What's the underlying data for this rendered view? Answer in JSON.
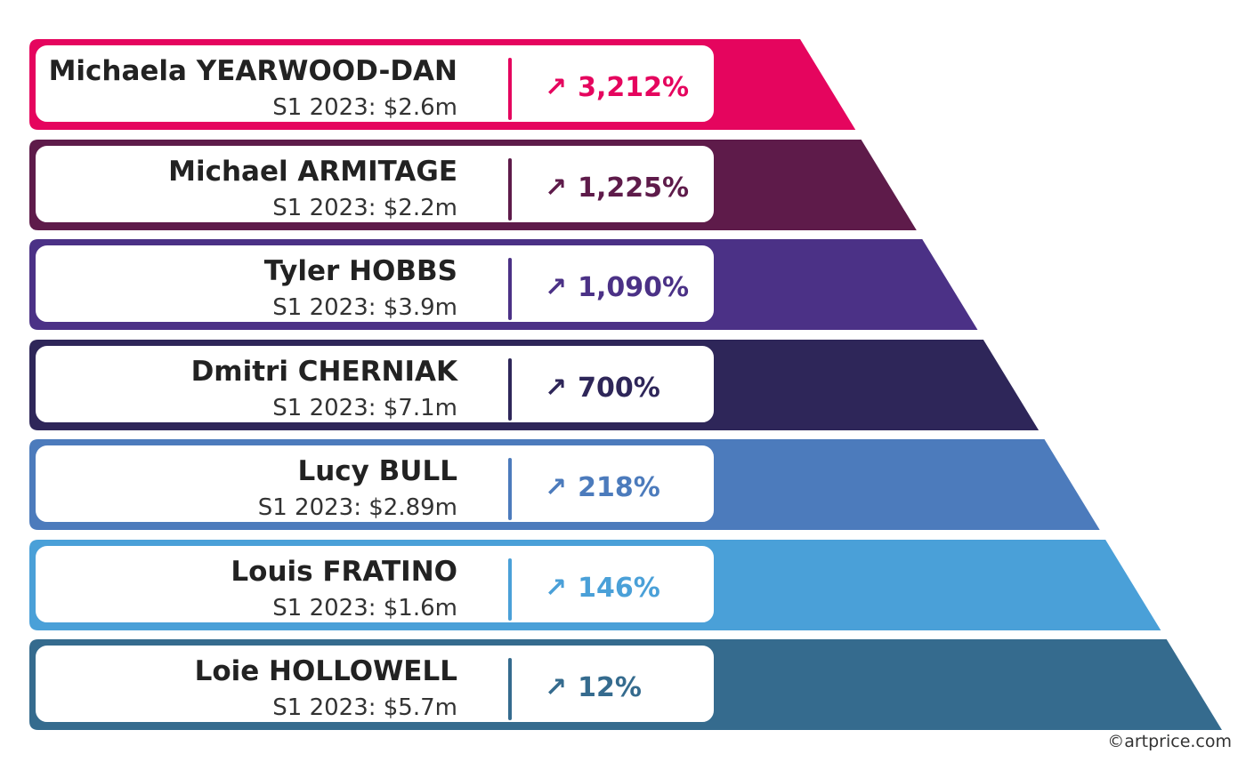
{
  "chart_data": {
    "type": "bar",
    "rows": [
      {
        "artist": "Michaela YEARWOOD-DAN",
        "sales_label": "S1 2023: $2.6m",
        "growth_label": "3,212%",
        "growth_value": 3212,
        "color": "#e5055e"
      },
      {
        "artist": "Michael ARMITAGE",
        "sales_label": "S1 2023: $2.2m",
        "growth_label": "1,225%",
        "growth_value": 1225,
        "color": "#5e1b4a"
      },
      {
        "artist": "Tyler HOBBS",
        "sales_label": "S1 2023: $3.9m",
        "growth_label": "1,090%",
        "growth_value": 1090,
        "color": "#4b3186"
      },
      {
        "artist": "Dmitri CHERNIAK",
        "sales_label": "S1 2023: $7.1m",
        "growth_label": "700%",
        "growth_value": 700,
        "color": "#2e2659"
      },
      {
        "artist": "Lucy BULL",
        "sales_label": "S1 2023: $2.89m",
        "growth_label": "218%",
        "growth_value": 218,
        "color": "#4c7bbc"
      },
      {
        "artist": "Louis FRATINO",
        "sales_label": "S1 2023: $1.6m",
        "growth_label": "146%",
        "growth_value": 146,
        "color": "#4aa0d8"
      },
      {
        "artist": "Loie HOLLOWELL",
        "sales_label": "S1 2023: $5.7m",
        "growth_label": "12%",
        "growth_value": 12,
        "color": "#356b8e"
      }
    ],
    "arrow_glyph": "↗"
  },
  "credit": "©artprice.com"
}
